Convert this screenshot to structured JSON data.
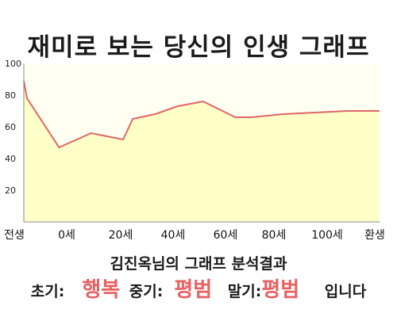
{
  "chart_data": {
    "type": "area",
    "title": "재미로 보는 당신의 인생 그래프",
    "x": [
      "전생",
      "0세",
      "20세",
      "40세",
      "60세",
      "80세",
      "100세",
      "환생"
    ],
    "series": [
      {
        "x": [
          -1,
          0,
          10,
          20,
          30,
          33,
          40,
          47,
          55,
          60,
          65,
          70,
          80,
          90,
          100,
          110
        ],
        "values": [
          89,
          78,
          47,
          56,
          52,
          65,
          68,
          73,
          76,
          71,
          66,
          66,
          68,
          69,
          70,
          70
        ]
      }
    ],
    "yticks": [
      20,
      40,
      60,
      80,
      100
    ],
    "ylim": [
      0,
      100
    ],
    "grid": false,
    "colors": {
      "line": "#e06666",
      "fill": "#ffffc8",
      "plot_bg": "#fffff2",
      "axis": "#888888"
    }
  },
  "result": {
    "caption": "김진옥님의 그래프 분석결과",
    "early_label": "초기:",
    "early_value": "행복",
    "mid_label": "중기:",
    "mid_value": "평범",
    "late_label": "말기:",
    "late_value": "평범",
    "ending": "입니다"
  }
}
